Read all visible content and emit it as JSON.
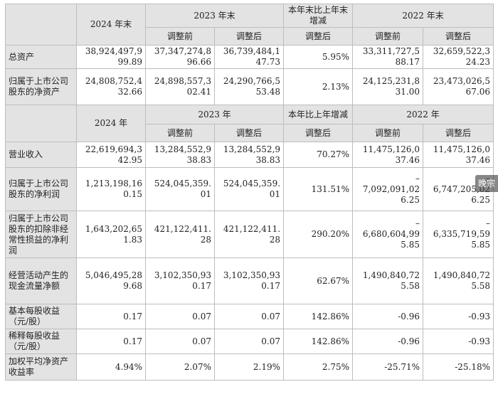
{
  "header1": {
    "col_2024": "2024 年末",
    "col_2023": "2023 年末",
    "col_change": "本年末比上年末增减",
    "col_2022": "2022 年末",
    "sub_before": "调整前",
    "sub_after": "调整后",
    "sub_change": "调整后"
  },
  "balance_rows": [
    {
      "label": "总资产",
      "v2024": [
        "38,924,497,9",
        "99.89"
      ],
      "v2023b": [
        "37,347,274,8",
        "96.66"
      ],
      "v2023a": [
        "36,739,484,1",
        "47.73"
      ],
      "change": "5.95%",
      "v2022b": [
        "33,311,727,5",
        "88.17"
      ],
      "v2022a": [
        "32,659,522,3",
        "24.23"
      ]
    },
    {
      "label": "归属于上市公司股东的净资产",
      "v2024": [
        "24,808,752,4",
        "32.66"
      ],
      "v2023b": [
        "24,898,557,3",
        "02.41"
      ],
      "v2023a": [
        "24,290,766,5",
        "53.48"
      ],
      "change": "2.13%",
      "v2022b": [
        "24,125,231,8",
        "31.00"
      ],
      "v2022a": [
        "23,473,026,5",
        "67.06"
      ]
    }
  ],
  "header2": {
    "col_2024": "2024 年",
    "col_2023": "2023 年",
    "col_change": "本年比上年增减",
    "col_2022": "2022 年",
    "sub_before": "调整前",
    "sub_after": "调整后",
    "sub_change": "调整后"
  },
  "income_rows": [
    {
      "label": "营业收入",
      "v2024": [
        "22,619,694,3",
        "42.95"
      ],
      "v2023b": [
        "13,284,552,9",
        "38.83"
      ],
      "v2023a": [
        "13,284,552,9",
        "38.83"
      ],
      "change": "70.27%",
      "v2022b": [
        "11,475,126,0",
        "37.46"
      ],
      "v2022a": [
        "11,475,126,0",
        "37.46"
      ]
    },
    {
      "label": "归属于上市公司股东的净利润",
      "v2024": [
        "1,213,198,16",
        "0.15"
      ],
      "v2023b": [
        "524,045,359.",
        "01"
      ],
      "v2023a": [
        "524,045,359.",
        "01"
      ],
      "change": "131.51%",
      "v2022b": [
        "–",
        "7,092,091,02",
        "6.25"
      ],
      "v2022a": [
        "–",
        "6,747,205,02",
        "6.25"
      ]
    },
    {
      "label": "归属于上市公司股东的扣除非经常性损益的净利润",
      "v2024": [
        "1,643,202,65",
        "1.83"
      ],
      "v2023b": [
        "421,122,411.",
        "28"
      ],
      "v2023a": [
        "421,122,411.",
        "28"
      ],
      "change": "290.20%",
      "v2022b": [
        "–",
        "6,680,604,99",
        "5.85"
      ],
      "v2022a": [
        "–",
        "6,335,719,59",
        "5.85"
      ]
    },
    {
      "label": "经营活动产生的现金流量净额",
      "v2024": [
        "5,046,495,28",
        "9.68"
      ],
      "v2023b": [
        "3,102,350,93",
        "0.17"
      ],
      "v2023a": [
        "3,102,350,93",
        "0.17"
      ],
      "change": "62.67%",
      "v2022b": [
        "1,490,840,72",
        "5.58"
      ],
      "v2022a": [
        "1,490,840,72",
        "5.58"
      ]
    },
    {
      "label": "基本每股收益（元/股）",
      "v2024": [
        "0.17"
      ],
      "v2023b": [
        "0.07"
      ],
      "v2023a": [
        "0.07"
      ],
      "change": "142.86%",
      "v2022b": [
        "-0.96"
      ],
      "v2022a": [
        "-0.93"
      ]
    },
    {
      "label": "稀释每股收益（元/股）",
      "v2024": [
        "0.17"
      ],
      "v2023b": [
        "0.07"
      ],
      "v2023a": [
        "0.07"
      ],
      "change": "142.86%",
      "v2022b": [
        "-0.96"
      ],
      "v2022a": [
        "-0.93"
      ]
    },
    {
      "label": "加权平均净资产收益率",
      "v2024": [
        "4.94%"
      ],
      "v2023b": [
        "2.07%"
      ],
      "v2023a": [
        "2.19%"
      ],
      "change": "2.75%",
      "v2022b": [
        "-25.71%"
      ],
      "v2022a": [
        "-25.18%"
      ]
    }
  ],
  "watermark": "晚宗"
}
